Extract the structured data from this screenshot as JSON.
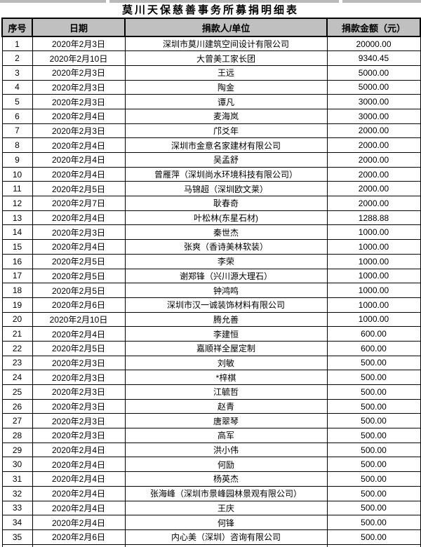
{
  "title": "莫川天保慈善事务所募捐明细表",
  "colors": {
    "header_bg": "#c0c0c0",
    "grid_border": "#000000",
    "top_strip": "#b9b9b9",
    "text": "#000000"
  },
  "table": {
    "headers": {
      "seq": "序号",
      "date": "日期",
      "donor": "捐款人/单位",
      "amount": "捐款金额（元）"
    },
    "rows": [
      {
        "seq": "1",
        "date": "2020年2月3日",
        "donor": "深圳市莫川建筑空间设计有限公司",
        "amount": "20000.00"
      },
      {
        "seq": "2",
        "date": "2020年2月10日",
        "donor": "大曾美工家长团",
        "amount": "9340.45"
      },
      {
        "seq": "3",
        "date": "2020年2月3日",
        "donor": "王远",
        "amount": "5000.00"
      },
      {
        "seq": "4",
        "date": "2020年2月3日",
        "donor": "陶金",
        "amount": "5000.00"
      },
      {
        "seq": "5",
        "date": "2020年2月3日",
        "donor": "谭凡",
        "amount": "3000.00"
      },
      {
        "seq": "6",
        "date": "2020年2月4日",
        "donor": "麦海岚",
        "amount": "3000.00"
      },
      {
        "seq": "7",
        "date": "2020年2月3日",
        "donor": "邝爻年",
        "amount": "2000.00"
      },
      {
        "seq": "8",
        "date": "2020年2月4日",
        "donor": "深圳市金意名家建材有限公司",
        "amount": "2000.00"
      },
      {
        "seq": "9",
        "date": "2020年2月4日",
        "donor": "吴孟舒",
        "amount": "2000.00"
      },
      {
        "seq": "10",
        "date": "2020年2月4日",
        "donor": "曾雁萍（深圳尚水环境科技有限公司）",
        "amount": "2000.00"
      },
      {
        "seq": "11",
        "date": "2020年2月5日",
        "donor": "马锦超（深圳欧文莱）",
        "amount": "2000.00"
      },
      {
        "seq": "12",
        "date": "2020年2月7日",
        "donor": "耿春奇",
        "amount": "2000.00"
      },
      {
        "seq": "13",
        "date": "2020年2月4日",
        "donor": "叶松林(东星石材)",
        "amount": "1288.88"
      },
      {
        "seq": "14",
        "date": "2020年2月3日",
        "donor": "秦世杰",
        "amount": "1000.00"
      },
      {
        "seq": "15",
        "date": "2020年2月4日",
        "donor": "张爽（香诗美林软装）",
        "amount": "1000.00"
      },
      {
        "seq": "16",
        "date": "2020年2月5日",
        "donor": "李荣",
        "amount": "1000.00"
      },
      {
        "seq": "17",
        "date": "2020年2月5日",
        "donor": "谢郑锋（兴川源大理石）",
        "amount": "1000.00"
      },
      {
        "seq": "18",
        "date": "2020年2月5日",
        "donor": "钟鸿鸣",
        "amount": "1000.00"
      },
      {
        "seq": "19",
        "date": "2020年2月6日",
        "donor": "深圳市汉一诚装饰材料有限公司",
        "amount": "1000.00"
      },
      {
        "seq": "20",
        "date": "2020年2月10日",
        "donor": "腾允善",
        "amount": "1000.00"
      },
      {
        "seq": "21",
        "date": "2020年2月4日",
        "donor": "李建恒",
        "amount": "600.00"
      },
      {
        "seq": "22",
        "date": "2020年2月5日",
        "donor": "嘉顺祥全屋定制",
        "amount": "600.00"
      },
      {
        "seq": "23",
        "date": "2020年2月3日",
        "donor": "刘敏",
        "amount": "500.00"
      },
      {
        "seq": "24",
        "date": "2020年2月3日",
        "donor": "*梓棋",
        "amount": "500.00"
      },
      {
        "seq": "25",
        "date": "2020年2月3日",
        "donor": "江毓哲",
        "amount": "500.00"
      },
      {
        "seq": "26",
        "date": "2020年2月3日",
        "donor": "赵青",
        "amount": "500.00"
      },
      {
        "seq": "27",
        "date": "2020年2月3日",
        "donor": "唐翠琴",
        "amount": "500.00"
      },
      {
        "seq": "28",
        "date": "2020年2月3日",
        "donor": "高军",
        "amount": "500.00"
      },
      {
        "seq": "29",
        "date": "2020年2月4日",
        "donor": "洪小伟",
        "amount": "500.00"
      },
      {
        "seq": "30",
        "date": "2020年2月4日",
        "donor": "何励",
        "amount": "500.00"
      },
      {
        "seq": "31",
        "date": "2020年2月4日",
        "donor": "杨英杰",
        "amount": "500.00"
      },
      {
        "seq": "32",
        "date": "2020年2月4日",
        "donor": "张海峰（深圳市景峰园林景观有限公司）",
        "amount": "500.00"
      },
      {
        "seq": "33",
        "date": "2020年2月4日",
        "donor": "王庆",
        "amount": "500.00"
      },
      {
        "seq": "34",
        "date": "2020年2月4日",
        "donor": "何锋",
        "amount": "500.00"
      },
      {
        "seq": "35",
        "date": "2020年2月6日",
        "donor": "内心美（深圳）咨询有限公司",
        "amount": "500.00"
      }
    ]
  }
}
